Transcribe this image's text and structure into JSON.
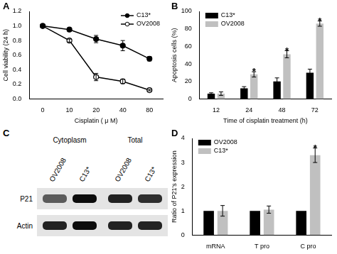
{
  "chart_data": [
    {
      "panel": "A",
      "type": "line",
      "x_label": "Cisplatin ( μ M)",
      "y_label": "Cell viability (24 h)",
      "categories": [
        "0",
        "10",
        "20",
        "40",
        "80"
      ],
      "series": [
        {
          "name": "C13*",
          "color": "#000000",
          "marker": "circle",
          "values": [
            1.0,
            0.95,
            0.82,
            0.73,
            0.55
          ],
          "errors": [
            0.01,
            0.02,
            0.05,
            0.07,
            0.03
          ]
        },
        {
          "name": "OV2008",
          "color": "#000000",
          "marker": "circle_open",
          "values": [
            1.0,
            0.8,
            0.3,
            0.24,
            0.12
          ],
          "errors": [
            0.01,
            0.02,
            0.05,
            0.03,
            0.01
          ]
        }
      ],
      "ylim": [
        0,
        1.2
      ],
      "yticks": [
        {
          "value": 0,
          "label": "0.0"
        },
        0.2,
        0.4,
        0.6,
        0.8,
        {
          "value": 1,
          "label": "1.0"
        },
        1.2
      ],
      "grid": false,
      "legend": "top-right"
    },
    {
      "panel": "B",
      "type": "bar",
      "x_label": "Time of cisplatin treatment (h)",
      "y_label": "Apoptosis cells (%)",
      "categories": [
        "12",
        "24",
        "48",
        "72"
      ],
      "series": [
        {
          "name": "C13*",
          "color": "#000000",
          "values": [
            6,
            12,
            20,
            30
          ],
          "errors": [
            1,
            2,
            4,
            4
          ]
        },
        {
          "name": "OV2008",
          "color": "#c0c0c0",
          "values": [
            6,
            28,
            51,
            86
          ],
          "errors": [
            2,
            3,
            4,
            3
          ]
        }
      ],
      "annotations": [
        {
          "category": "24",
          "series": "OV2008",
          "text": "*"
        },
        {
          "category": "48",
          "series": "OV2008",
          "text": "*"
        },
        {
          "category": "72",
          "series": "OV2008",
          "text": "*"
        }
      ],
      "ylim": [
        0,
        100
      ],
      "yticks": [
        0,
        20,
        40,
        60,
        80,
        100
      ],
      "grid": false,
      "legend": "top-left"
    },
    {
      "panel": "D",
      "type": "bar",
      "y_label": "Ratio of P21's expression",
      "categories": [
        "mRNA",
        "T pro",
        "C pro"
      ],
      "series": [
        {
          "name": "OV2008",
          "color": "#000000",
          "values": [
            1,
            1,
            1
          ],
          "errors": [
            0,
            0,
            0
          ]
        },
        {
          "name": "C13*",
          "color": "#c0c0c0",
          "values": [
            1.0,
            1.05,
            3.3
          ],
          "errors": [
            0.22,
            0.15,
            0.3
          ]
        }
      ],
      "annotations": [
        {
          "category": "C pro",
          "series": "C13*",
          "text": "*"
        }
      ],
      "ylim": [
        0,
        4
      ],
      "yticks": [
        0,
        1,
        2,
        3,
        4
      ],
      "grid": false,
      "legend": "top-left"
    }
  ],
  "blot": {
    "panel": "C",
    "groups": [
      {
        "label": "Cytoplasm",
        "lanes": [
          "OV2008",
          "C13*"
        ]
      },
      {
        "label": "Total",
        "lanes": [
          "OV2008",
          "C13*"
        ]
      }
    ],
    "rows": [
      {
        "label": "P21",
        "intensity": [
          0.6,
          0.95,
          0.85,
          0.8
        ]
      },
      {
        "label": "Actin",
        "intensity": [
          0.85,
          0.95,
          0.85,
          0.85
        ]
      }
    ]
  }
}
